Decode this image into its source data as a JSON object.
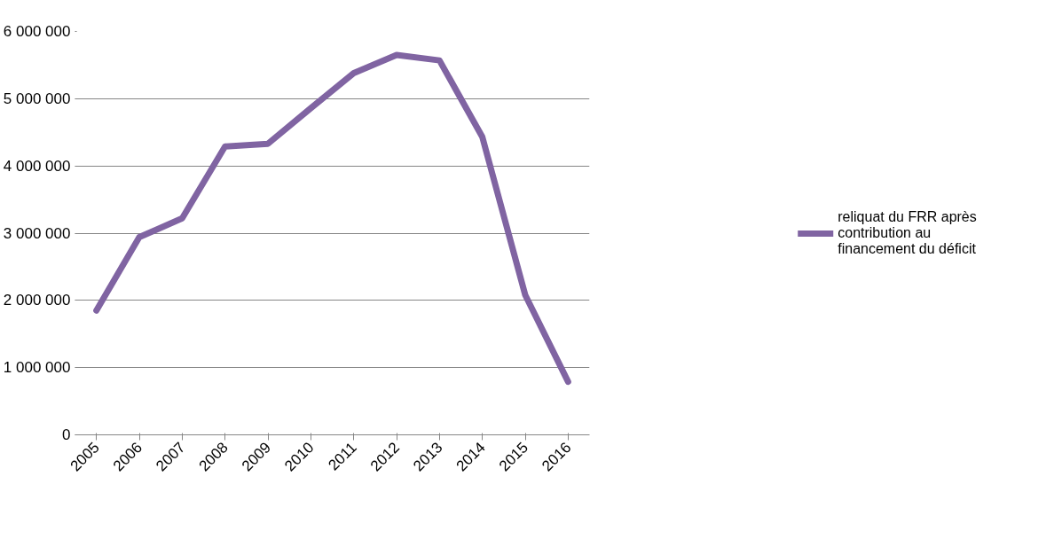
{
  "chart_data": {
    "type": "line",
    "categories": [
      "2005",
      "2006",
      "2007",
      "2008",
      "2009",
      "2010",
      "2011",
      "2012",
      "2013",
      "2014",
      "2015",
      "2016"
    ],
    "series": [
      {
        "name": "reliquat du FRR après contribution au financement du déficit",
        "color": "#8064a2",
        "values": [
          1850000,
          2940000,
          3220000,
          4290000,
          4330000,
          4860000,
          5380000,
          5650000,
          5570000,
          4430000,
          2080000,
          790000
        ]
      }
    ],
    "ylim": [
      0,
      6000000
    ],
    "yticks": [
      0,
      {
        "value": 1000000,
        "label": "1 000 000"
      },
      {
        "value": 2000000,
        "label": "2 000 000"
      },
      {
        "value": 3000000,
        "label": "3 000 000"
      },
      {
        "value": 4000000,
        "label": "4 000 000"
      },
      {
        "value": 5000000,
        "label": "5 000 000"
      },
      {
        "value": 6000000,
        "label": "6 000 000"
      }
    ],
    "grid": "y",
    "legend": "right",
    "marker": "none",
    "line_style": "solid"
  }
}
